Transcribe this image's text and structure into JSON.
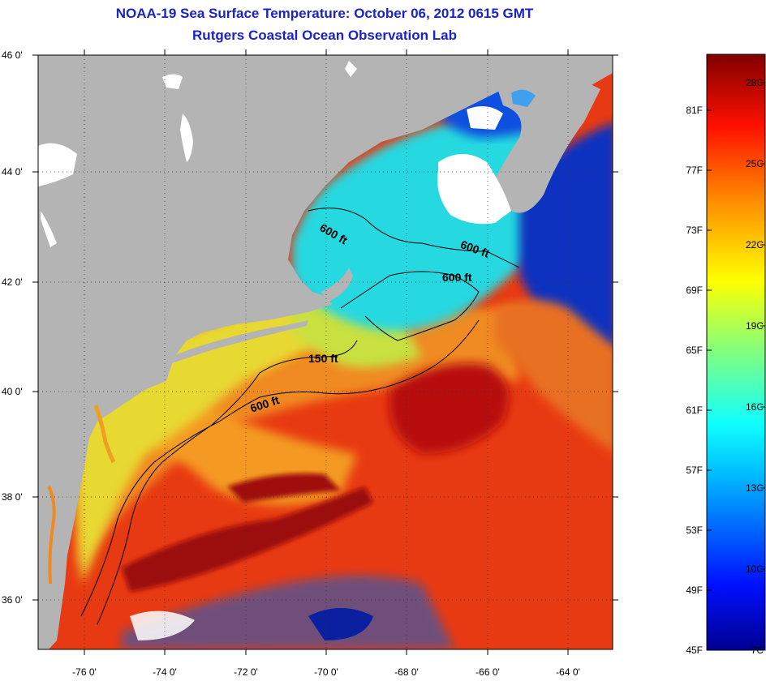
{
  "title": {
    "line1": "NOAA-19 Sea Surface Temperature:  October 06, 2012 0615 GMT",
    "line2": "Rutgers Coastal Ocean Observation Lab"
  },
  "map": {
    "lat_labels": [
      "46 0'",
      "44 0'",
      "42 0'",
      "40 0'",
      "38 0'",
      "36 0'"
    ],
    "lon_labels": [
      "-76 0'",
      "-74 0'",
      "-72 0'",
      "-70 0'",
      "-68 0'",
      "-66 0'",
      "-64 0'"
    ],
    "contour_labels": [
      "600 ft",
      "600 ft",
      "600 ft",
      "150 ft",
      "600 ft"
    ],
    "colors": {
      "land": "#b4b4b4",
      "cloud": "#ffffff",
      "cold": "#0a2ab8",
      "cyan": "#20d8e8",
      "yellow": "#e8e030",
      "orange": "#f09020",
      "red": "#e02010",
      "darkred": "#a00808"
    }
  },
  "colorbar": {
    "fahrenheit_labels": [
      "81F",
      "77F",
      "73F",
      "69F",
      "65F",
      "61F",
      "57F",
      "53F",
      "49F",
      "45F"
    ],
    "celsius_labels": [
      "28C",
      "25C",
      "22C",
      "19C",
      "16C",
      "13C",
      "10C",
      "7C"
    ]
  }
}
